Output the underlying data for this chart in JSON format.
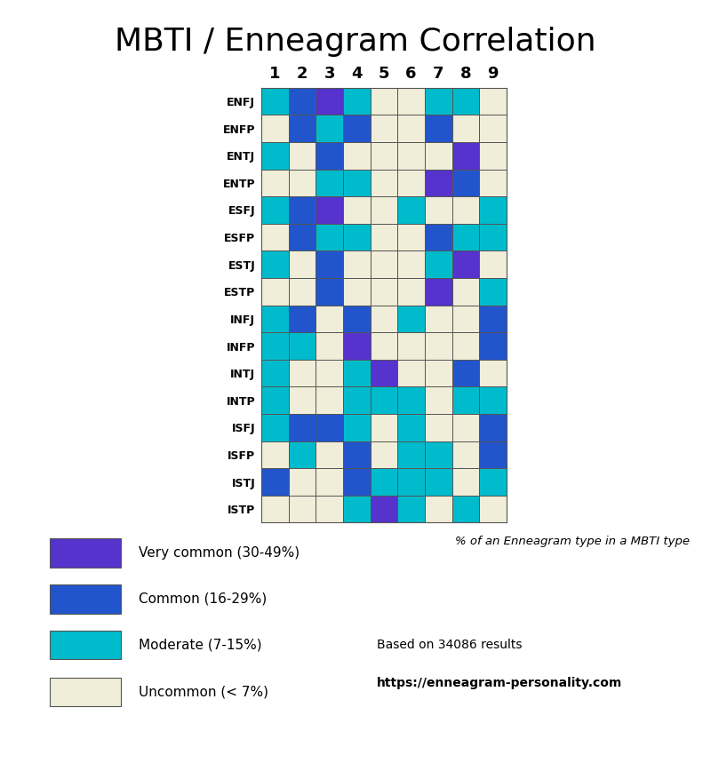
{
  "title": "MBTI / Enneagram Correlation",
  "rows": [
    "ENFJ",
    "ENFP",
    "ENTJ",
    "ENTP",
    "ESFJ",
    "ESFP",
    "ESTJ",
    "ESTP",
    "INFJ",
    "INFP",
    "INTJ",
    "INTP",
    "ISFJ",
    "ISFP",
    "ISTJ",
    "ISTP"
  ],
  "cols": [
    "1",
    "2",
    "3",
    "4",
    "5",
    "6",
    "7",
    "8",
    "9"
  ],
  "grid": [
    [
      "M",
      "C",
      "V",
      "M",
      "U",
      "U",
      "M",
      "M",
      "U"
    ],
    [
      "U",
      "C",
      "M",
      "C",
      "U",
      "U",
      "C",
      "U",
      "U"
    ],
    [
      "M",
      "U",
      "C",
      "U",
      "U",
      "U",
      "U",
      "V",
      "U"
    ],
    [
      "U",
      "U",
      "M",
      "M",
      "U",
      "U",
      "V",
      "C",
      "U"
    ],
    [
      "M",
      "C",
      "V",
      "U",
      "U",
      "M",
      "U",
      "U",
      "M"
    ],
    [
      "U",
      "C",
      "M",
      "M",
      "U",
      "U",
      "C",
      "M",
      "M"
    ],
    [
      "M",
      "U",
      "C",
      "U",
      "U",
      "U",
      "M",
      "V",
      "U"
    ],
    [
      "U",
      "U",
      "C",
      "U",
      "U",
      "U",
      "V",
      "U",
      "M"
    ],
    [
      "M",
      "C",
      "U",
      "C",
      "U",
      "M",
      "U",
      "U",
      "C"
    ],
    [
      "M",
      "M",
      "U",
      "V",
      "U",
      "U",
      "U",
      "U",
      "C"
    ],
    [
      "M",
      "U",
      "U",
      "M",
      "V",
      "U",
      "U",
      "C",
      "U"
    ],
    [
      "M",
      "U",
      "U",
      "M",
      "M",
      "M",
      "U",
      "M",
      "M"
    ],
    [
      "M",
      "C",
      "C",
      "M",
      "U",
      "M",
      "U",
      "U",
      "C"
    ],
    [
      "U",
      "M",
      "U",
      "C",
      "U",
      "M",
      "M",
      "U",
      "C"
    ],
    [
      "C",
      "U",
      "U",
      "C",
      "M",
      "M",
      "M",
      "U",
      "M"
    ],
    [
      "U",
      "U",
      "U",
      "M",
      "V",
      "M",
      "U",
      "M",
      "U"
    ]
  ],
  "color_map": {
    "V": "#5533CC",
    "C": "#2255CC",
    "M": "#00BBCC",
    "U": "#F0EDD8"
  },
  "legend_labels": [
    "Very common (30-49%)",
    "Common (16-29%)",
    "Moderate (7-15%)",
    "Uncommon (< 7%)"
  ],
  "legend_keys": [
    "V",
    "C",
    "M",
    "U"
  ],
  "subtitle_right": "% of an Enneagram type in a MBTI type",
  "footnote_line1": "Based on 34086 results",
  "footnote_line2": "https://enneagram-personality.com",
  "background_color": "#FFFFFF",
  "cell_edge_color": "#555555",
  "title_fontsize": 26,
  "col_label_fontsize": 13,
  "row_label_fontsize": 9
}
